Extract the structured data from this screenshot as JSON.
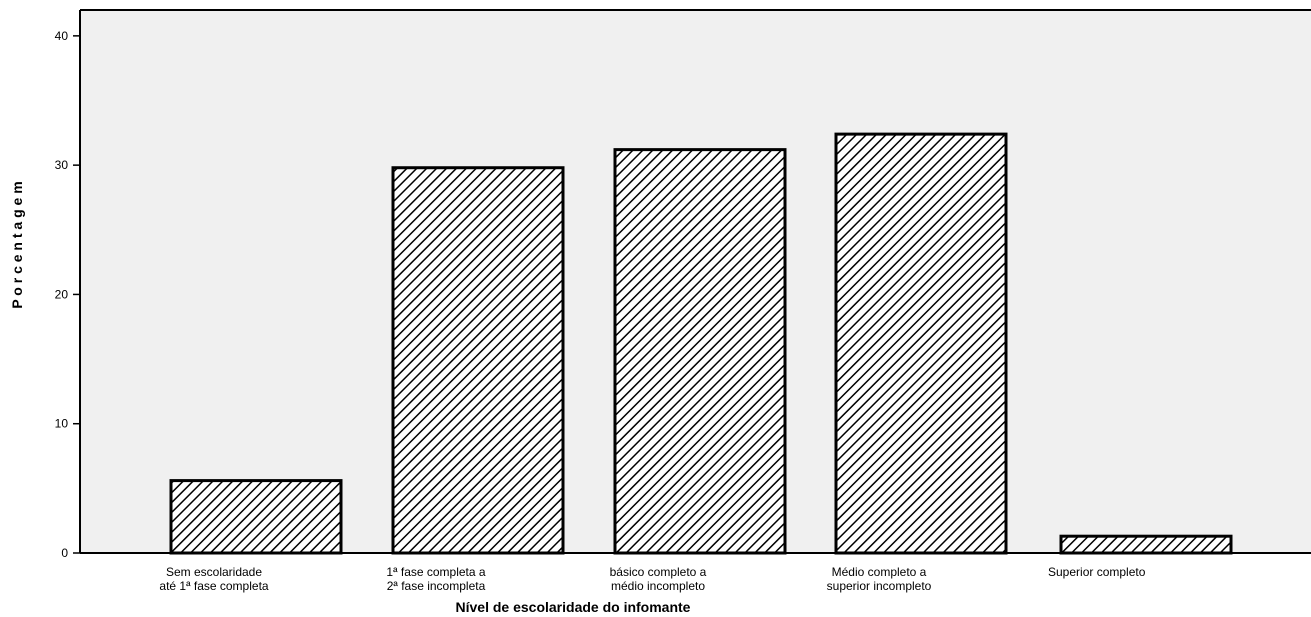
{
  "chart_data": {
    "type": "bar",
    "categories": [
      [
        "Sem escolaridade",
        "até 1ª fase completa"
      ],
      [
        "1ª fase completa a",
        "2ª fase incompleta"
      ],
      [
        "básico completo a",
        "médio incompleto"
      ],
      [
        "Médio completo a",
        "superior incompleto"
      ],
      [
        "Superior completo"
      ]
    ],
    "values": [
      5.6,
      29.8,
      31.2,
      32.4,
      1.3
    ],
    "xlabel": "Nível de escolaridade do infomante",
    "ylabel": "P o r c e n t a g e m",
    "ylim": [
      0,
      42
    ],
    "yticks": [
      0,
      10,
      20,
      30,
      40
    ],
    "grid": false,
    "colors": {
      "plot_background": "#f0f0f0",
      "bar_fill": "#ffffff",
      "bar_hatch": "#000000",
      "axis": "#000000"
    }
  }
}
